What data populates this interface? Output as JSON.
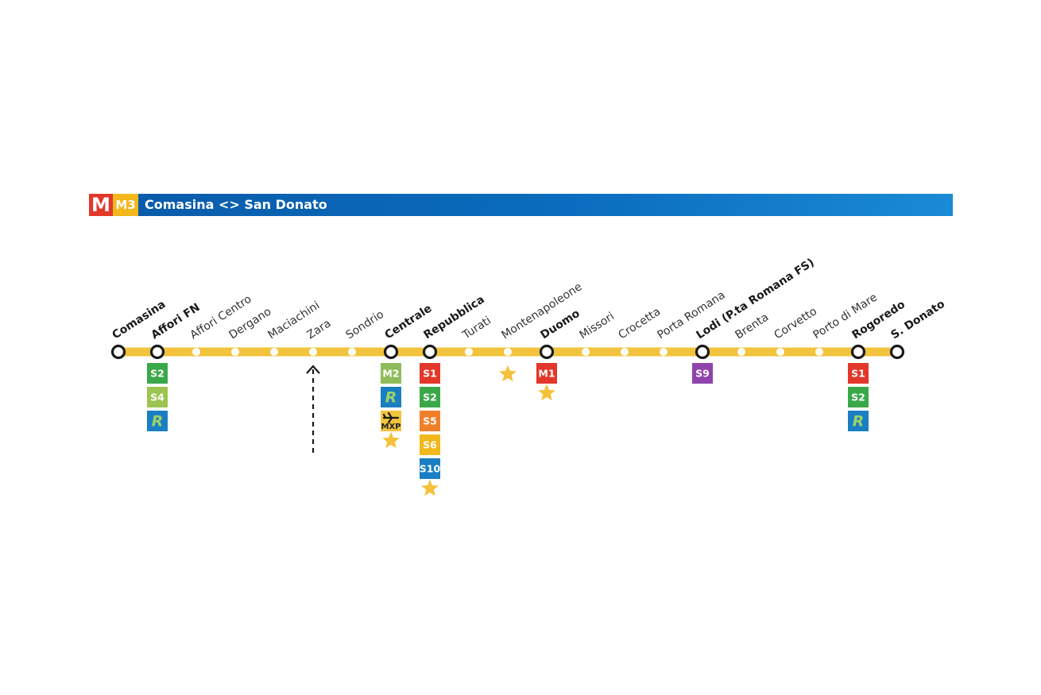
{
  "header": {
    "logo_text": "M",
    "line_label": "M3",
    "route": "Comasina <> San Donato",
    "colors": {
      "banner": "#0a6cbe",
      "logo": "#e2372a",
      "line": "#f2b81c"
    }
  },
  "line_color": "#f2c33c",
  "stations": [
    {
      "name": "Comasina",
      "type": "terminus",
      "bold": true,
      "connections": []
    },
    {
      "name": "Affori FN",
      "type": "interchange",
      "bold": true,
      "connections": [
        {
          "label": "S2",
          "color": "#3aa849"
        },
        {
          "label": "S4",
          "color": "#9bc550"
        },
        {
          "label": "R",
          "color": "#1a7ec2",
          "icon": "regional-train-icon"
        }
      ]
    },
    {
      "name": "Affori Centro",
      "type": "stop",
      "bold": false,
      "connections": []
    },
    {
      "name": "Dergano",
      "type": "stop",
      "bold": false,
      "connections": []
    },
    {
      "name": "Maciachini",
      "type": "stop",
      "bold": false,
      "connections": []
    },
    {
      "name": "Zara",
      "type": "stop",
      "bold": false,
      "connections": []
    },
    {
      "name": "Sondrio",
      "type": "stop",
      "bold": false,
      "connections": []
    },
    {
      "name": "Centrale",
      "type": "interchange",
      "bold": true,
      "star": true,
      "connections": [
        {
          "label": "M2",
          "color": "#8fbc5a"
        },
        {
          "label": "R",
          "color": "#1a7ec2",
          "icon": "regional-train-icon"
        },
        {
          "label": "MXP",
          "color": "#f2c33c",
          "icon": "airplane-icon"
        }
      ]
    },
    {
      "name": "Repubblica",
      "type": "interchange",
      "bold": true,
      "star": true,
      "connections": [
        {
          "label": "S1",
          "color": "#e2372a"
        },
        {
          "label": "S2",
          "color": "#3aa849"
        },
        {
          "label": "S5",
          "color": "#f07f2a"
        },
        {
          "label": "S6",
          "color": "#f2b81c"
        },
        {
          "label": "S10",
          "color": "#1a7ec2"
        }
      ]
    },
    {
      "name": "Turati",
      "type": "stop",
      "bold": false,
      "connections": []
    },
    {
      "name": "Montenapoleone",
      "type": "stop",
      "bold": false,
      "star": true,
      "connections": []
    },
    {
      "name": "Duomo",
      "type": "interchange",
      "bold": true,
      "star": true,
      "connections": [
        {
          "label": "M1",
          "color": "#e2372a"
        }
      ]
    },
    {
      "name": "Missori",
      "type": "stop",
      "bold": false,
      "connections": []
    },
    {
      "name": "Crocetta",
      "type": "stop",
      "bold": false,
      "connections": []
    },
    {
      "name": "Porta Romana",
      "type": "stop",
      "bold": false,
      "connections": []
    },
    {
      "name": "Lodi (P.ta Romana FS)",
      "type": "interchange",
      "bold": true,
      "connections": [
        {
          "label": "S9",
          "color": "#8e44ad"
        }
      ]
    },
    {
      "name": "Brenta",
      "type": "stop",
      "bold": false,
      "connections": []
    },
    {
      "name": "Corvetto",
      "type": "stop",
      "bold": false,
      "connections": []
    },
    {
      "name": "Porto di Mare",
      "type": "stop",
      "bold": false,
      "connections": []
    },
    {
      "name": "Rogoredo",
      "type": "interchange",
      "bold": true,
      "connections": [
        {
          "label": "S1",
          "color": "#e2372a"
        },
        {
          "label": "S2",
          "color": "#3aa849"
        },
        {
          "label": "R",
          "color": "#1a7ec2",
          "icon": "regional-train-icon"
        }
      ]
    },
    {
      "name": "S. Donato",
      "type": "terminus",
      "bold": true,
      "connections": []
    }
  ],
  "marker": {
    "station": "Zara",
    "style": "dashed-arrow"
  },
  "star_color": "#f5c13a"
}
